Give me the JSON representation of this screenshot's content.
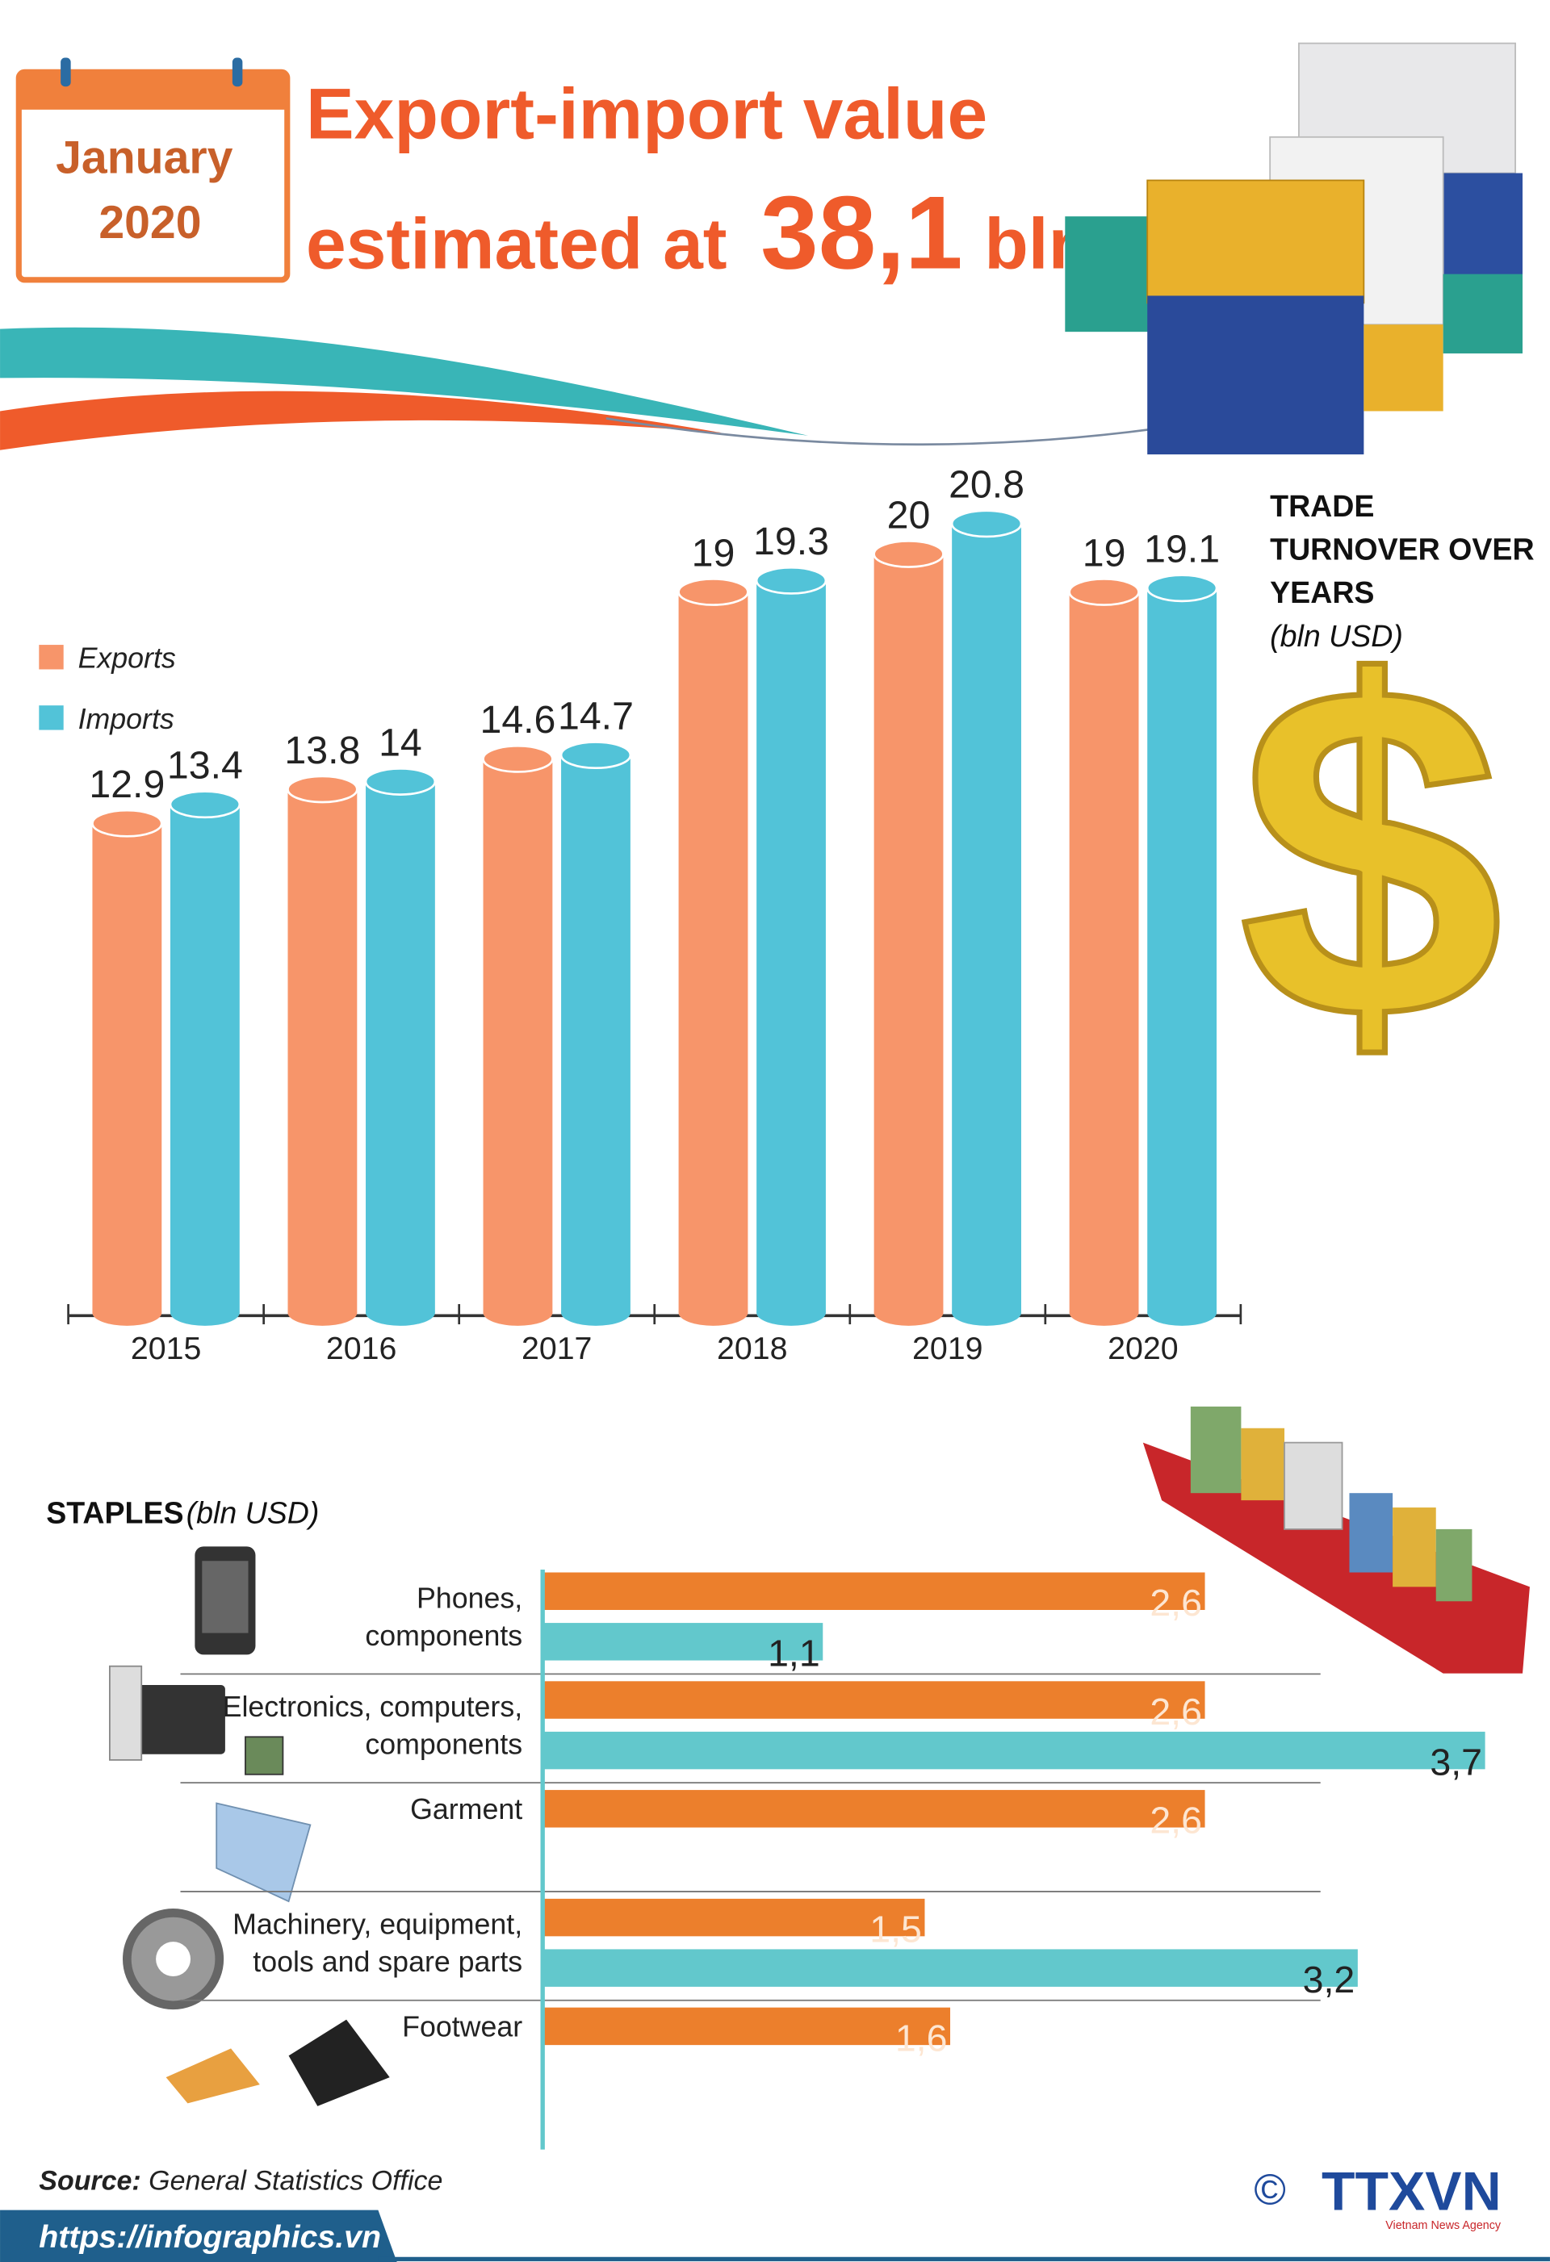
{
  "header": {
    "month": "January",
    "year": "2020",
    "title_line1": "Export-import value",
    "title_prefix": "estimated at",
    "title_value": "38,1",
    "title_unit": "bln"
  },
  "chart_data": [
    {
      "type": "column",
      "title": [
        "TRADE",
        "TURNOVER OVER",
        "YEARS"
      ],
      "subtitle": "(bln USD)",
      "categories": [
        "2015",
        "2016",
        "2017",
        "2018",
        "2019",
        "2020"
      ],
      "series": [
        {
          "name": "Exports",
          "color": "#f7956a",
          "values": [
            12.9,
            13.8,
            14.6,
            19,
            20,
            19
          ]
        },
        {
          "name": "Imports",
          "color": "#52c3d8",
          "values": [
            13.4,
            14,
            14.7,
            19.3,
            20.8,
            19.1
          ]
        }
      ],
      "ylim": [
        0,
        25
      ],
      "legend": "left"
    },
    {
      "type": "hbar",
      "title": "STAPLES",
      "subtitle": "(bln USD)",
      "categories": [
        [
          "Phones,",
          "components"
        ],
        [
          "Electronics, computers,",
          "components"
        ],
        [
          "Garment"
        ],
        [
          "Machinery, equipment,",
          "tools and spare parts"
        ],
        [
          "Footwear"
        ]
      ],
      "series": [
        {
          "color": "#ec7f2c",
          "values": [
            2.6,
            2.6,
            2.6,
            1.5,
            1.6
          ],
          "value_labels": [
            "2,6",
            "2,6",
            "2,6",
            "1,5",
            "1,6"
          ]
        },
        {
          "color": "#62c8cc",
          "values": [
            1.1,
            3.7,
            null,
            3.2,
            null
          ],
          "value_labels": [
            "1,1",
            "3,7",
            null,
            "3,2",
            null
          ]
        }
      ],
      "xlim": [
        0,
        4
      ]
    }
  ],
  "source_label": "Source:",
  "source": "General Statistics Office",
  "url": "https://infographics.vn",
  "logo": "TTXVN",
  "logo_sub": "Vietnam News Agency",
  "copyright": "©"
}
